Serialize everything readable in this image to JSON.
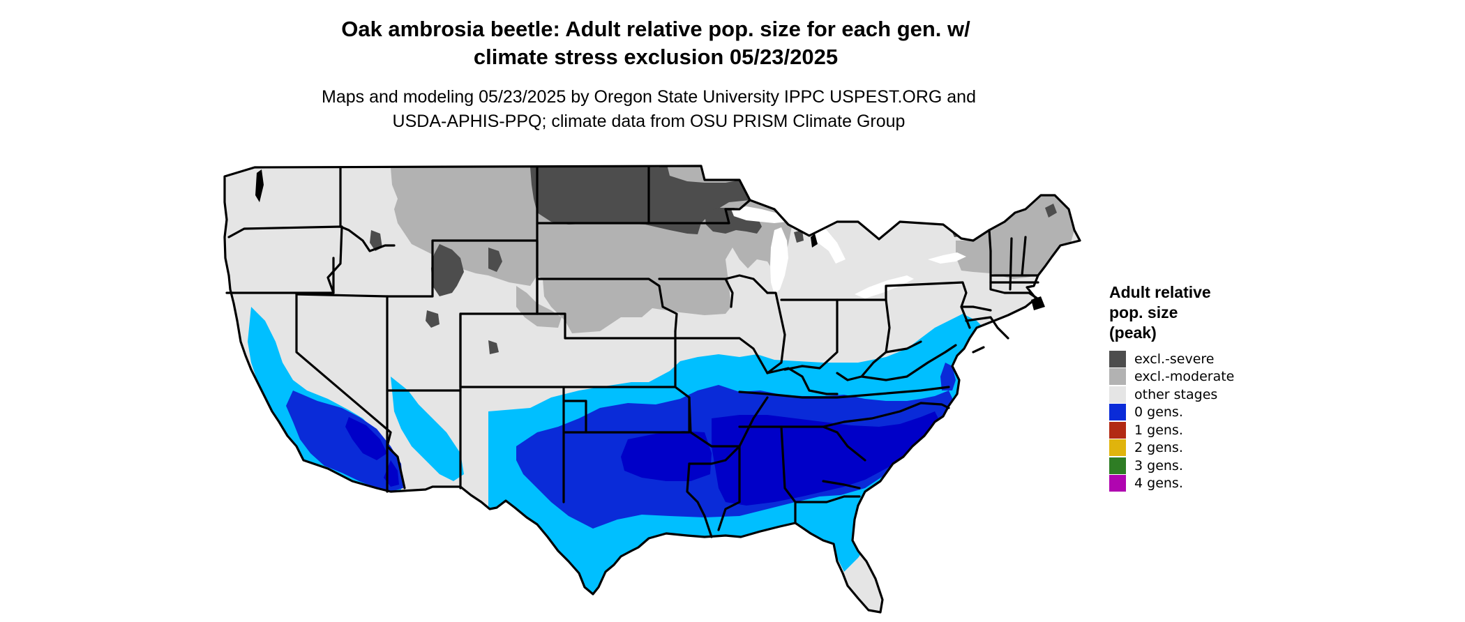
{
  "title_line1": "Oak ambrosia beetle: Adult relative pop. size for each gen. w/",
  "title_line2": "climate stress exclusion 05/23/2025",
  "subtitle_line1": "Maps and modeling 05/23/2025 by Oregon State University IPPC USPEST.ORG and",
  "subtitle_line2": "USDA-APHIS-PPQ; climate data from OSU PRISM Climate Group",
  "legend": {
    "title_line1": "Adult relative",
    "title_line2": "pop. size",
    "title_line3": "(peak)",
    "items": [
      {
        "label": "excl.-severe",
        "color": "#4d4d4d"
      },
      {
        "label": "excl.-moderate",
        "color": "#b2b2b2"
      },
      {
        "label": "other stages",
        "color": "#e5e5e5"
      },
      {
        "label": "0 gens.",
        "color": "#0a2bd8"
      },
      {
        "label": "1 gens.",
        "color": "#b22a14"
      },
      {
        "label": "2 gens.",
        "color": "#e0b40c"
      },
      {
        "label": "3 gens.",
        "color": "#2e7d24"
      },
      {
        "label": "4 gens.",
        "color": "#b005b0"
      }
    ]
  },
  "map_colors": {
    "severe": "#4d4d4d",
    "moderate": "#b2b2b2",
    "other": "#e5e5e5",
    "light_blue": "#00bfff",
    "mid_blue": "#0a2bd8",
    "dark_blue": "#0000c8",
    "border": "#000000"
  }
}
